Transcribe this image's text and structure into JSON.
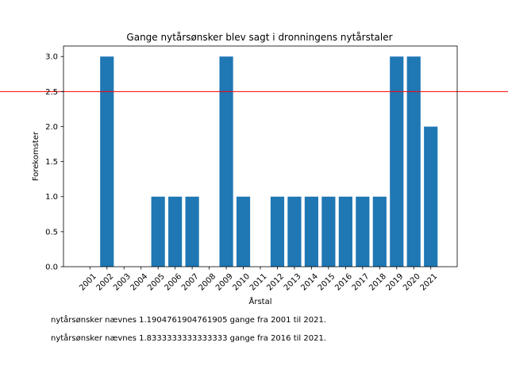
{
  "chart_data": {
    "type": "bar",
    "title": "Gange nytårsønsker blev sagt i dronningens nytårstaler",
    "xlabel": "Årstal",
    "ylabel": "Forekomster",
    "categories": [
      "2001",
      "2002",
      "2003",
      "2004",
      "2005",
      "2006",
      "2007",
      "2008",
      "2009",
      "2010",
      "2011",
      "2012",
      "2013",
      "2014",
      "2015",
      "2016",
      "2017",
      "2018",
      "2019",
      "2020",
      "2021"
    ],
    "values": [
      0,
      3,
      0,
      0,
      1,
      1,
      1,
      0,
      3,
      1,
      0,
      1,
      1,
      1,
      1,
      1,
      1,
      1,
      3,
      3,
      2
    ],
    "ylim": [
      0,
      3.15
    ],
    "yticks": [
      "0.0",
      "0.5",
      "1.0",
      "1.5",
      "2.0",
      "2.5",
      "3.0"
    ],
    "reference_line": {
      "value": 2.5,
      "color": "#ff0000"
    },
    "bar_color": "#1f77b4",
    "grid": false,
    "legend": "none"
  },
  "notes": [
    "nytårsønsker nævnes 1.1904761904761905 gange fra 2001 til 2021.",
    "nytårsønsker nævnes 1.8333333333333333 gange fra 2016 til 2021."
  ]
}
